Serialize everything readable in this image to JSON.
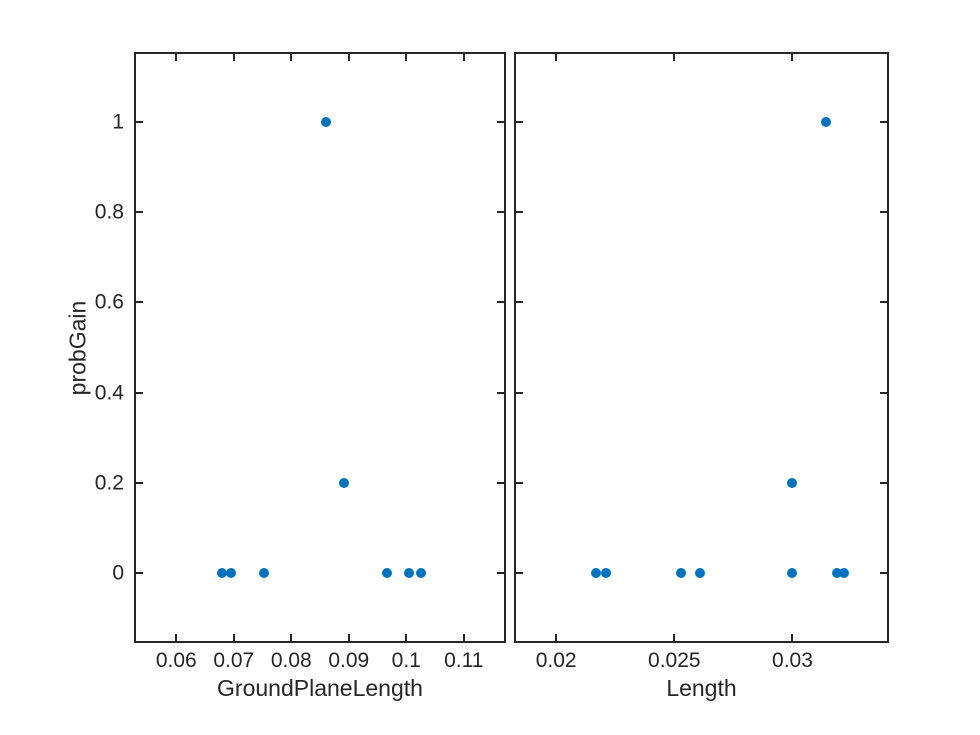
{
  "figure": {
    "background": "#ffffff",
    "axis_color": "#262626",
    "text_color": "#262626",
    "marker_color": "#0072BD"
  },
  "chart_data": [
    {
      "type": "scatter",
      "xlabel": "GroundPlaneLength",
      "ylabel": "probGain",
      "xlim": [
        0.053,
        0.117
      ],
      "ylim": [
        -0.15,
        1.15
      ],
      "grid": false,
      "legend": null,
      "xticks": [
        {
          "v": 0.06,
          "label": "0.06"
        },
        {
          "v": 0.07,
          "label": "0.07"
        },
        {
          "v": 0.08,
          "label": "0.08"
        },
        {
          "v": 0.09,
          "label": "0.09"
        },
        {
          "v": 0.1,
          "label": "0.1"
        },
        {
          "v": 0.11,
          "label": "0.11"
        }
      ],
      "yticks": [
        {
          "v": 0,
          "label": "0"
        },
        {
          "v": 0.2,
          "label": "0.2"
        },
        {
          "v": 0.4,
          "label": "0.4"
        },
        {
          "v": 0.6,
          "label": "0.6"
        },
        {
          "v": 0.8,
          "label": "0.8"
        },
        {
          "v": 1,
          "label": "1"
        }
      ],
      "show_y_tick_labels": true,
      "points": [
        {
          "x": 0.068,
          "y": 0
        },
        {
          "x": 0.0695,
          "y": 0
        },
        {
          "x": 0.0752,
          "y": 0
        },
        {
          "x": 0.086,
          "y": 1
        },
        {
          "x": 0.0892,
          "y": 0.2
        },
        {
          "x": 0.0966,
          "y": 0
        },
        {
          "x": 0.1004,
          "y": 0
        },
        {
          "x": 0.1026,
          "y": 0
        }
      ]
    },
    {
      "type": "scatter",
      "xlabel": "Length",
      "ylabel": "",
      "xlim": [
        0.0183,
        0.034
      ],
      "ylim": [
        -0.15,
        1.15
      ],
      "grid": false,
      "legend": null,
      "xticks": [
        {
          "v": 0.02,
          "label": "0.02"
        },
        {
          "v": 0.025,
          "label": "0.025"
        },
        {
          "v": 0.03,
          "label": "0.03"
        }
      ],
      "yticks": [
        {
          "v": 0,
          "label": "0"
        },
        {
          "v": 0.2,
          "label": "0.2"
        },
        {
          "v": 0.4,
          "label": "0.4"
        },
        {
          "v": 0.6,
          "label": "0.6"
        },
        {
          "v": 0.8,
          "label": "0.8"
        },
        {
          "v": 1,
          "label": "1"
        }
      ],
      "show_y_tick_labels": false,
      "points": [
        {
          "x": 0.0217,
          "y": 0
        },
        {
          "x": 0.0221,
          "y": 0
        },
        {
          "x": 0.0253,
          "y": 0
        },
        {
          "x": 0.0261,
          "y": 0
        },
        {
          "x": 0.03,
          "y": 0
        },
        {
          "x": 0.03,
          "y": 0.2
        },
        {
          "x": 0.0314,
          "y": 1
        },
        {
          "x": 0.0319,
          "y": 0
        },
        {
          "x": 0.0322,
          "y": 0
        }
      ]
    }
  ]
}
